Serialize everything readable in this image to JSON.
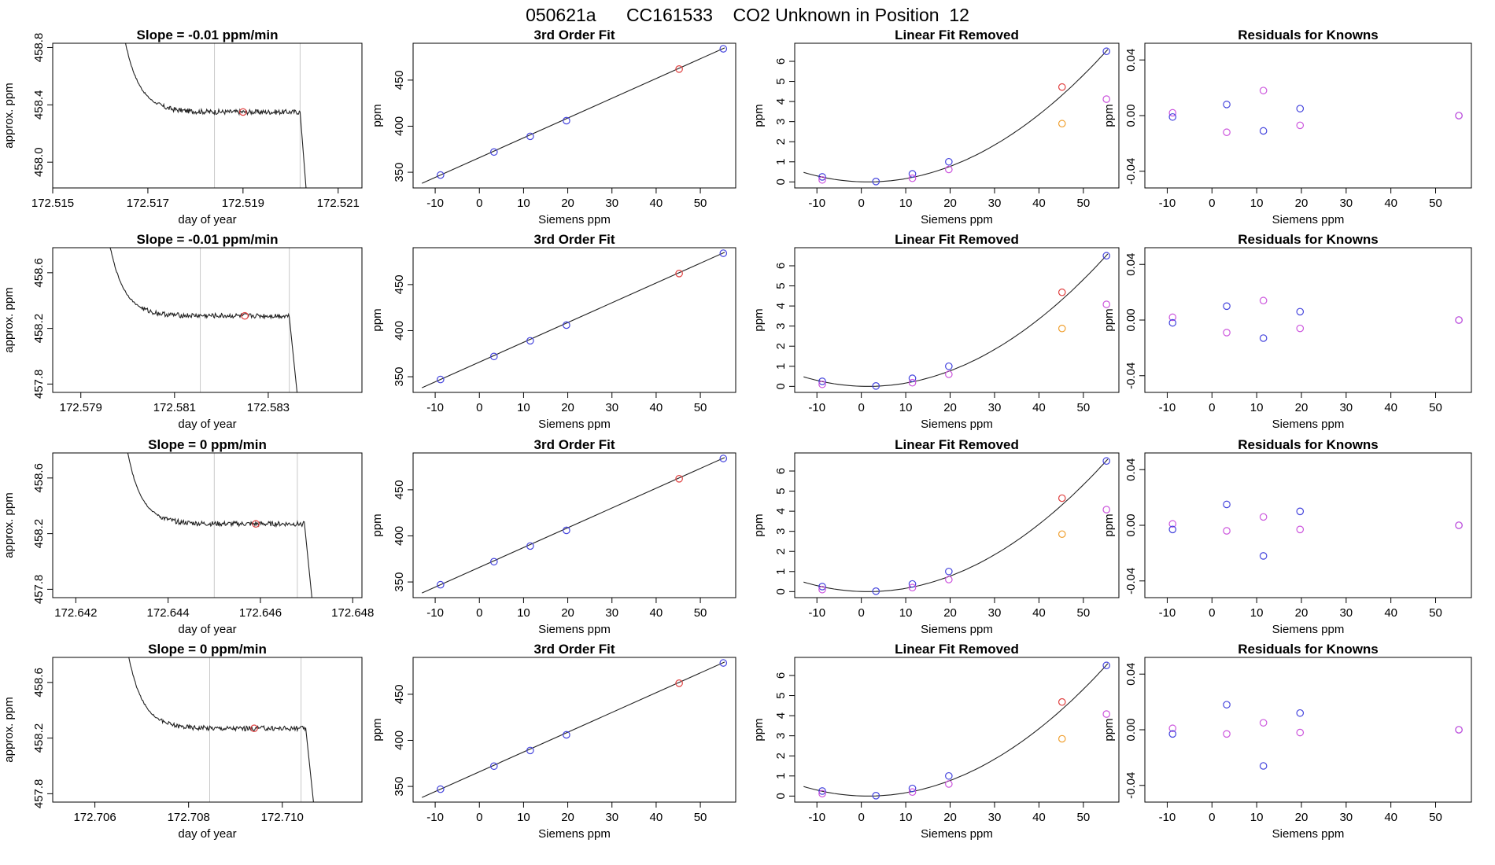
{
  "page": {
    "title": "050621a      CC161533    CO2 Unknown in Position  12"
  },
  "chart_data": [
    {
      "type": "line",
      "title": "Slope =  -0.01  ppm/min",
      "xlabel": "day of year",
      "ylabel": "approx. ppm",
      "xlim": [
        172.515,
        172.5215
      ],
      "ylim": [
        457.82,
        458.83
      ],
      "xticks": [
        "172.515",
        "172.517",
        "172.519",
        "172.521"
      ],
      "yticks": [
        "458.0",
        "458.4",
        "458.8"
      ],
      "curve": {
        "start": 172.5164,
        "drop_end": 172.5174,
        "end": 172.5202,
        "fall": 172.52035,
        "base": 458.35,
        "peak": 458.83
      },
      "vlines": [
        172.5184,
        172.5202
      ],
      "marker": {
        "x": 172.519,
        "y": 458.35,
        "color": "#e04040"
      }
    },
    {
      "type": "scatter",
      "title": "3rd Order Fit",
      "xlabel": "Siemens ppm",
      "ylabel": "ppm",
      "xlim": [
        -15,
        58
      ],
      "ylim": [
        333,
        490
      ],
      "xticks": [
        "-10",
        "0",
        "10",
        "20",
        "30",
        "40",
        "50"
      ],
      "yticks": [
        "350",
        "400",
        "450"
      ],
      "fit_line": {
        "x": [
          -13,
          55.5
        ],
        "y": [
          338,
          485
        ]
      },
      "points": [
        {
          "x": -8.8,
          "y": 347,
          "color": "#4444dd"
        },
        {
          "x": 3.3,
          "y": 372,
          "color": "#4444dd"
        },
        {
          "x": 11.5,
          "y": 389,
          "color": "#4444dd"
        },
        {
          "x": 19.7,
          "y": 406,
          "color": "#4444dd"
        },
        {
          "x": 45.2,
          "y": 462,
          "color": "#e04040"
        },
        {
          "x": 55.2,
          "y": 484,
          "color": "#4444dd"
        }
      ]
    },
    {
      "type": "scatter",
      "title": "Linear Fit Removed",
      "xlabel": "Siemens ppm",
      "ylabel": "ppm",
      "xlim": [
        -15,
        58
      ],
      "ylim": [
        -0.3,
        6.9
      ],
      "xticks": [
        "-10",
        "0",
        "10",
        "20",
        "30",
        "40",
        "50"
      ],
      "yticks": [
        "0",
        "1",
        "2",
        "3",
        "4",
        "5",
        "6"
      ],
      "quadratic": {
        "vertex_x": 1.5,
        "vertex_y": 0,
        "a": 0.00226,
        "x_from": -13,
        "x_to": 55.5
      },
      "points": [
        {
          "x": -8.8,
          "y": 0.25,
          "color": "#4444dd"
        },
        {
          "x": -8.8,
          "y": 0.1,
          "color": "#cc55dd"
        },
        {
          "x": 3.3,
          "y": 0.02,
          "color": "#4444dd"
        },
        {
          "x": 11.5,
          "y": 0.4,
          "color": "#4444dd"
        },
        {
          "x": 11.5,
          "y": 0.18,
          "color": "#cc55dd"
        },
        {
          "x": 19.7,
          "y": 1.0,
          "color": "#4444dd"
        },
        {
          "x": 19.7,
          "y": 0.62,
          "color": "#cc55dd"
        },
        {
          "x": 45.2,
          "y": 4.72,
          "color": "#e04040"
        },
        {
          "x": 45.2,
          "y": 2.9,
          "color": "#f0a030"
        },
        {
          "x": 55.2,
          "y": 6.5,
          "color": "#4444dd"
        },
        {
          "x": 55.2,
          "y": 4.12,
          "color": "#cc55dd"
        }
      ]
    },
    {
      "type": "scatter",
      "title": "Residuals for Knowns",
      "xlabel": "Siemens ppm",
      "ylabel": "ppm",
      "xlim": [
        -15,
        58
      ],
      "ylim": [
        -0.052,
        0.052
      ],
      "xticks": [
        "-10",
        "0",
        "10",
        "20",
        "30",
        "40",
        "50"
      ],
      "yticks": [
        "-0.04",
        "0.00",
        "0.04"
      ],
      "points": [
        {
          "x": -8.8,
          "y": 0.002,
          "color": "#cc55dd"
        },
        {
          "x": -8.8,
          "y": -0.001,
          "color": "#4444dd"
        },
        {
          "x": 3.3,
          "y": 0.008,
          "color": "#4444dd"
        },
        {
          "x": 3.3,
          "y": -0.012,
          "color": "#cc55dd"
        },
        {
          "x": 11.5,
          "y": 0.018,
          "color": "#cc55dd"
        },
        {
          "x": 11.5,
          "y": -0.011,
          "color": "#4444dd"
        },
        {
          "x": 19.7,
          "y": 0.005,
          "color": "#4444dd"
        },
        {
          "x": 19.7,
          "y": -0.007,
          "color": "#cc55dd"
        },
        {
          "x": 55.2,
          "y": 0.0,
          "color": "#4444dd"
        },
        {
          "x": 55.2,
          "y": 0.0,
          "color": "#cc55dd"
        }
      ]
    },
    {
      "type": "line",
      "title": "Slope =  -0.01  ppm/min",
      "xlabel": "day of year",
      "ylabel": "approx. ppm",
      "xlim": [
        172.5784,
        172.585
      ],
      "ylim": [
        457.74,
        458.78
      ],
      "xticks": [
        "172.579",
        "172.581",
        "172.583"
      ],
      "yticks": [
        "457.8",
        "458.2",
        "458.6"
      ],
      "curve": {
        "start": 172.5795,
        "drop_end": 172.5805,
        "end": 172.58345,
        "fall": 172.58365,
        "base": 458.29,
        "peak": 458.78
      },
      "vlines": [
        172.58155,
        172.58345
      ],
      "marker": {
        "x": 172.5825,
        "y": 458.29,
        "color": "#e04040"
      }
    },
    {
      "type": "scatter",
      "title": "3rd Order Fit",
      "xlabel": "Siemens ppm",
      "ylabel": "ppm",
      "xlim": [
        -15,
        58
      ],
      "ylim": [
        333,
        490
      ],
      "xticks": [
        "-10",
        "0",
        "10",
        "20",
        "30",
        "40",
        "50"
      ],
      "yticks": [
        "350",
        "400",
        "450"
      ],
      "fit_line": {
        "x": [
          -13,
          55.5
        ],
        "y": [
          338,
          485
        ]
      },
      "points": [
        {
          "x": -8.8,
          "y": 347,
          "color": "#4444dd"
        },
        {
          "x": 3.3,
          "y": 372,
          "color": "#4444dd"
        },
        {
          "x": 11.5,
          "y": 389,
          "color": "#4444dd"
        },
        {
          "x": 19.7,
          "y": 406,
          "color": "#4444dd"
        },
        {
          "x": 45.2,
          "y": 462,
          "color": "#e04040"
        },
        {
          "x": 55.2,
          "y": 484,
          "color": "#4444dd"
        }
      ]
    },
    {
      "type": "scatter",
      "title": "Linear Fit Removed",
      "xlabel": "Siemens ppm",
      "ylabel": "ppm",
      "xlim": [
        -15,
        58
      ],
      "ylim": [
        -0.3,
        6.9
      ],
      "xticks": [
        "-10",
        "0",
        "10",
        "20",
        "30",
        "40",
        "50"
      ],
      "yticks": [
        "0",
        "1",
        "2",
        "3",
        "4",
        "5",
        "6"
      ],
      "quadratic": {
        "vertex_x": 1.5,
        "vertex_y": 0,
        "a": 0.00226,
        "x_from": -13,
        "x_to": 55.5
      },
      "points": [
        {
          "x": -8.8,
          "y": 0.25,
          "color": "#4444dd"
        },
        {
          "x": -8.8,
          "y": 0.1,
          "color": "#cc55dd"
        },
        {
          "x": 3.3,
          "y": 0.02,
          "color": "#4444dd"
        },
        {
          "x": 11.5,
          "y": 0.4,
          "color": "#4444dd"
        },
        {
          "x": 11.5,
          "y": 0.18,
          "color": "#cc55dd"
        },
        {
          "x": 19.7,
          "y": 1.0,
          "color": "#4444dd"
        },
        {
          "x": 19.7,
          "y": 0.6,
          "color": "#cc55dd"
        },
        {
          "x": 45.2,
          "y": 4.68,
          "color": "#e04040"
        },
        {
          "x": 45.2,
          "y": 2.88,
          "color": "#f0a030"
        },
        {
          "x": 55.2,
          "y": 6.5,
          "color": "#4444dd"
        },
        {
          "x": 55.2,
          "y": 4.08,
          "color": "#cc55dd"
        }
      ]
    },
    {
      "type": "scatter",
      "title": "Residuals for Knowns",
      "xlabel": "Siemens ppm",
      "ylabel": "ppm",
      "xlim": [
        -15,
        58
      ],
      "ylim": [
        -0.052,
        0.052
      ],
      "xticks": [
        "-10",
        "0",
        "10",
        "20",
        "30",
        "40",
        "50"
      ],
      "yticks": [
        "-0.04",
        "0.00",
        "0.04"
      ],
      "points": [
        {
          "x": -8.8,
          "y": 0.002,
          "color": "#cc55dd"
        },
        {
          "x": -8.8,
          "y": -0.002,
          "color": "#4444dd"
        },
        {
          "x": 3.3,
          "y": 0.01,
          "color": "#4444dd"
        },
        {
          "x": 3.3,
          "y": -0.009,
          "color": "#cc55dd"
        },
        {
          "x": 11.5,
          "y": 0.014,
          "color": "#cc55dd"
        },
        {
          "x": 11.5,
          "y": -0.013,
          "color": "#4444dd"
        },
        {
          "x": 19.7,
          "y": 0.006,
          "color": "#4444dd"
        },
        {
          "x": 19.7,
          "y": -0.006,
          "color": "#cc55dd"
        },
        {
          "x": 55.2,
          "y": 0.0,
          "color": "#4444dd"
        },
        {
          "x": 55.2,
          "y": 0.0,
          "color": "#cc55dd"
        }
      ]
    },
    {
      "type": "line",
      "title": "Slope =  0  ppm/min",
      "xlabel": "day of year",
      "ylabel": "approx. ppm",
      "xlim": [
        172.6415,
        172.6482
      ],
      "ylim": [
        457.74,
        458.78
      ],
      "xticks": [
        "172.642",
        "172.644",
        "172.646",
        "172.648"
      ],
      "yticks": [
        "457.8",
        "458.2",
        "458.6"
      ],
      "curve": {
        "start": 172.643,
        "drop_end": 172.644,
        "end": 172.64695,
        "fall": 172.64715,
        "base": 458.27,
        "peak": 458.78
      },
      "vlines": [
        172.645,
        172.6468
      ],
      "marker": {
        "x": 172.6459,
        "y": 458.27,
        "color": "#e04040"
      }
    },
    {
      "type": "scatter",
      "title": "3rd Order Fit",
      "xlabel": "Siemens ppm",
      "ylabel": "ppm",
      "xlim": [
        -15,
        58
      ],
      "ylim": [
        333,
        490
      ],
      "xticks": [
        "-10",
        "0",
        "10",
        "20",
        "30",
        "40",
        "50"
      ],
      "yticks": [
        "350",
        "400",
        "450"
      ],
      "fit_line": {
        "x": [
          -13,
          55.5
        ],
        "y": [
          338,
          485
        ]
      },
      "points": [
        {
          "x": -8.8,
          "y": 347,
          "color": "#4444dd"
        },
        {
          "x": 3.3,
          "y": 372,
          "color": "#4444dd"
        },
        {
          "x": 11.5,
          "y": 389,
          "color": "#4444dd"
        },
        {
          "x": 19.7,
          "y": 406,
          "color": "#4444dd"
        },
        {
          "x": 45.2,
          "y": 462,
          "color": "#e04040"
        },
        {
          "x": 55.2,
          "y": 484,
          "color": "#4444dd"
        }
      ]
    },
    {
      "type": "scatter",
      "title": "Linear Fit Removed",
      "xlabel": "Siemens ppm",
      "ylabel": "ppm",
      "xlim": [
        -15,
        58
      ],
      "ylim": [
        -0.3,
        6.9
      ],
      "xticks": [
        "-10",
        "0",
        "10",
        "20",
        "30",
        "40",
        "50"
      ],
      "yticks": [
        "0",
        "1",
        "2",
        "3",
        "4",
        "5",
        "6"
      ],
      "quadratic": {
        "vertex_x": 1.5,
        "vertex_y": 0,
        "a": 0.00226,
        "x_from": -13,
        "x_to": 55.5
      },
      "points": [
        {
          "x": -8.8,
          "y": 0.25,
          "color": "#4444dd"
        },
        {
          "x": -8.8,
          "y": 0.1,
          "color": "#cc55dd"
        },
        {
          "x": 3.3,
          "y": 0.02,
          "color": "#4444dd"
        },
        {
          "x": 11.5,
          "y": 0.38,
          "color": "#4444dd"
        },
        {
          "x": 11.5,
          "y": 0.2,
          "color": "#cc55dd"
        },
        {
          "x": 19.7,
          "y": 1.0,
          "color": "#4444dd"
        },
        {
          "x": 19.7,
          "y": 0.6,
          "color": "#cc55dd"
        },
        {
          "x": 45.2,
          "y": 4.65,
          "color": "#e04040"
        },
        {
          "x": 45.2,
          "y": 2.86,
          "color": "#f0a030"
        },
        {
          "x": 55.2,
          "y": 6.5,
          "color": "#4444dd"
        },
        {
          "x": 55.2,
          "y": 4.08,
          "color": "#cc55dd"
        }
      ]
    },
    {
      "type": "scatter",
      "title": "Residuals for Knowns",
      "xlabel": "Siemens ppm",
      "ylabel": "ppm",
      "xlim": [
        -15,
        58
      ],
      "ylim": [
        -0.052,
        0.052
      ],
      "xticks": [
        "-10",
        "0",
        "10",
        "20",
        "30",
        "40",
        "50"
      ],
      "yticks": [
        "-0.04",
        "0.00",
        "0.04"
      ],
      "points": [
        {
          "x": -8.8,
          "y": 0.001,
          "color": "#cc55dd"
        },
        {
          "x": -8.8,
          "y": -0.003,
          "color": "#4444dd"
        },
        {
          "x": 3.3,
          "y": 0.015,
          "color": "#4444dd"
        },
        {
          "x": 3.3,
          "y": -0.004,
          "color": "#cc55dd"
        },
        {
          "x": 11.5,
          "y": 0.006,
          "color": "#cc55dd"
        },
        {
          "x": 11.5,
          "y": -0.022,
          "color": "#4444dd"
        },
        {
          "x": 19.7,
          "y": 0.01,
          "color": "#4444dd"
        },
        {
          "x": 19.7,
          "y": -0.003,
          "color": "#cc55dd"
        },
        {
          "x": 55.2,
          "y": 0.0,
          "color": "#4444dd"
        },
        {
          "x": 55.2,
          "y": 0.0,
          "color": "#cc55dd"
        }
      ]
    },
    {
      "type": "line",
      "title": "Slope =  0  ppm/min",
      "xlabel": "day of year",
      "ylabel": "approx. ppm",
      "xlim": [
        172.7051,
        172.7117
      ],
      "ylim": [
        457.74,
        458.78
      ],
      "xticks": [
        "172.706",
        "172.708",
        "172.710"
      ],
      "yticks": [
        "457.8",
        "458.2",
        "458.6"
      ],
      "curve": {
        "start": 172.7066,
        "drop_end": 172.7076,
        "end": 172.7105,
        "fall": 172.7107,
        "base": 458.27,
        "peak": 458.78
      },
      "vlines": [
        172.70845,
        172.7104
      ],
      "marker": {
        "x": 172.7094,
        "y": 458.27,
        "color": "#e04040"
      }
    },
    {
      "type": "scatter",
      "title": "3rd Order Fit",
      "xlabel": "Siemens ppm",
      "ylabel": "ppm",
      "xlim": [
        -15,
        58
      ],
      "ylim": [
        333,
        490
      ],
      "xticks": [
        "-10",
        "0",
        "10",
        "20",
        "30",
        "40",
        "50"
      ],
      "yticks": [
        "350",
        "400",
        "450"
      ],
      "fit_line": {
        "x": [
          -13,
          55.5
        ],
        "y": [
          338,
          485
        ]
      },
      "points": [
        {
          "x": -8.8,
          "y": 347,
          "color": "#4444dd"
        },
        {
          "x": 3.3,
          "y": 372,
          "color": "#4444dd"
        },
        {
          "x": 11.5,
          "y": 389,
          "color": "#4444dd"
        },
        {
          "x": 19.7,
          "y": 406,
          "color": "#4444dd"
        },
        {
          "x": 45.2,
          "y": 462,
          "color": "#e04040"
        },
        {
          "x": 55.2,
          "y": 484,
          "color": "#4444dd"
        }
      ]
    },
    {
      "type": "scatter",
      "title": "Linear Fit Removed",
      "xlabel": "Siemens ppm",
      "ylabel": "ppm",
      "xlim": [
        -15,
        58
      ],
      "ylim": [
        -0.3,
        6.9
      ],
      "xticks": [
        "-10",
        "0",
        "10",
        "20",
        "30",
        "40",
        "50"
      ],
      "yticks": [
        "0",
        "1",
        "2",
        "3",
        "4",
        "5",
        "6"
      ],
      "quadratic": {
        "vertex_x": 1.5,
        "vertex_y": 0,
        "a": 0.00226,
        "x_from": -13,
        "x_to": 55.5
      },
      "points": [
        {
          "x": -8.8,
          "y": 0.25,
          "color": "#4444dd"
        },
        {
          "x": -8.8,
          "y": 0.12,
          "color": "#cc55dd"
        },
        {
          "x": 3.3,
          "y": 0.02,
          "color": "#4444dd"
        },
        {
          "x": 11.5,
          "y": 0.38,
          "color": "#4444dd"
        },
        {
          "x": 11.5,
          "y": 0.2,
          "color": "#cc55dd"
        },
        {
          "x": 19.7,
          "y": 1.0,
          "color": "#4444dd"
        },
        {
          "x": 19.7,
          "y": 0.6,
          "color": "#cc55dd"
        },
        {
          "x": 45.2,
          "y": 4.68,
          "color": "#e04040"
        },
        {
          "x": 45.2,
          "y": 2.85,
          "color": "#f0a030"
        },
        {
          "x": 55.2,
          "y": 6.5,
          "color": "#4444dd"
        },
        {
          "x": 55.2,
          "y": 4.08,
          "color": "#cc55dd"
        }
      ]
    },
    {
      "type": "scatter",
      "title": "Residuals for Knowns",
      "xlabel": "Siemens ppm",
      "ylabel": "ppm",
      "xlim": [
        -15,
        58
      ],
      "ylim": [
        -0.052,
        0.052
      ],
      "xticks": [
        "-10",
        "0",
        "10",
        "20",
        "30",
        "40",
        "50"
      ],
      "yticks": [
        "-0.04",
        "0.00",
        "0.04"
      ],
      "points": [
        {
          "x": -8.8,
          "y": 0.001,
          "color": "#cc55dd"
        },
        {
          "x": -8.8,
          "y": -0.003,
          "color": "#4444dd"
        },
        {
          "x": 3.3,
          "y": 0.018,
          "color": "#4444dd"
        },
        {
          "x": 3.3,
          "y": -0.003,
          "color": "#cc55dd"
        },
        {
          "x": 11.5,
          "y": 0.005,
          "color": "#cc55dd"
        },
        {
          "x": 11.5,
          "y": -0.026,
          "color": "#4444dd"
        },
        {
          "x": 19.7,
          "y": 0.012,
          "color": "#4444dd"
        },
        {
          "x": 19.7,
          "y": -0.002,
          "color": "#cc55dd"
        },
        {
          "x": 55.2,
          "y": 0.0,
          "color": "#4444dd"
        },
        {
          "x": 55.2,
          "y": 0.0,
          "color": "#cc55dd"
        }
      ]
    }
  ]
}
